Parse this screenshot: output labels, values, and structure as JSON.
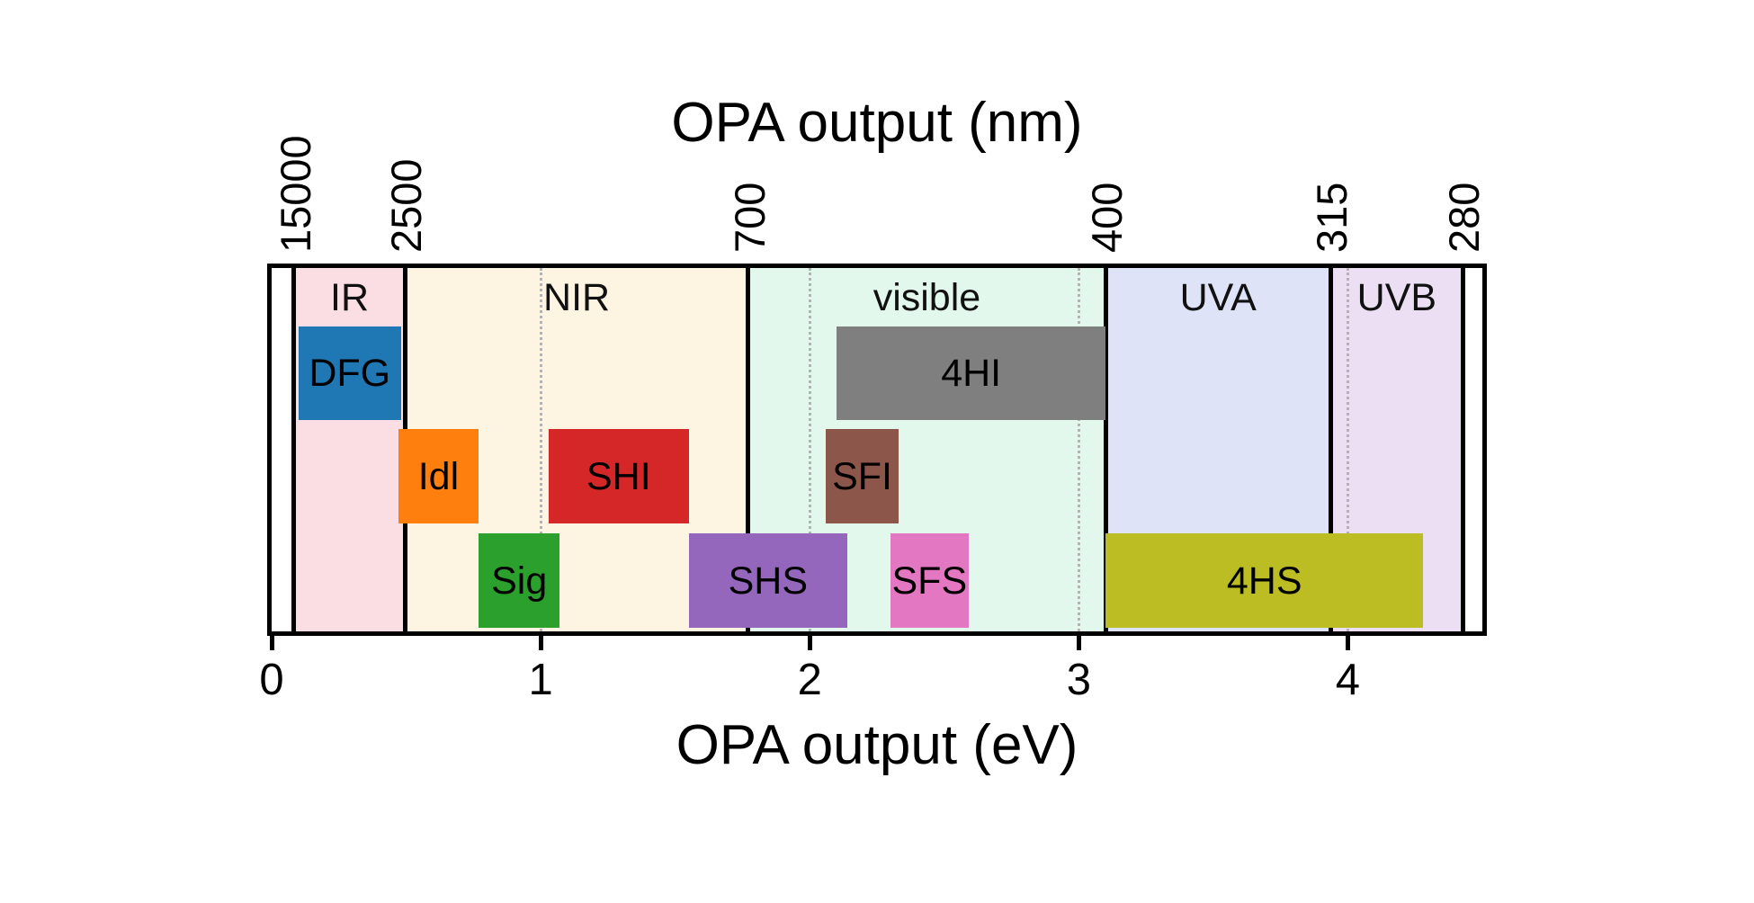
{
  "chart_data": {
    "type": "bar",
    "subtype": "horizontal-spectral-range-diagram",
    "title_top": "OPA output (nm)",
    "title_bottom": "OPA output (eV)",
    "x_axis": {
      "unit": "eV",
      "min": 0,
      "max": 4.5,
      "bottom_ticks": [
        "0",
        "1",
        "2",
        "3",
        "4"
      ],
      "bottom_tick_values": [
        0,
        1,
        2,
        3,
        4
      ],
      "gridlines_eV": [
        1,
        2,
        3,
        4
      ],
      "gridline_color": "#b3b3b3",
      "grid": true
    },
    "top_axis": {
      "unit": "nm",
      "ticks": [
        {
          "label": "15000",
          "eV": 0.0827
        },
        {
          "label": "2500",
          "eV": 0.4959
        },
        {
          "label": "700",
          "eV": 1.7712
        },
        {
          "label": "400",
          "eV": 3.0996
        },
        {
          "label": "315",
          "eV": 3.936
        },
        {
          "label": "280",
          "eV": 4.428
        }
      ]
    },
    "regions": [
      {
        "name": "IR",
        "label": "IR",
        "start_eV": 0.0827,
        "end_eV": 0.4959,
        "color": "#fadee3"
      },
      {
        "name": "NIR",
        "label": "NIR",
        "start_eV": 0.4959,
        "end_eV": 1.7712,
        "color": "#fdf5e2"
      },
      {
        "name": "visible",
        "label": "visible",
        "start_eV": 1.7712,
        "end_eV": 3.0996,
        "color": "#e2f8ec"
      },
      {
        "name": "UVA",
        "label": "UVA",
        "start_eV": 3.0996,
        "end_eV": 3.936,
        "color": "#dfe3f7"
      },
      {
        "name": "UVB",
        "label": "UVB",
        "start_eV": 3.936,
        "end_eV": 4.428,
        "color": "#ecdff3"
      }
    ],
    "rows": [
      "A",
      "B",
      "C"
    ],
    "bars": [
      {
        "label": "DFG",
        "row": "A",
        "start_eV": 0.1,
        "end_eV": 0.48,
        "color": "#1f77b4"
      },
      {
        "label": "Idl",
        "row": "B",
        "start_eV": 0.47,
        "end_eV": 0.77,
        "color": "#ff7f0e"
      },
      {
        "label": "Sig",
        "row": "C",
        "start_eV": 0.77,
        "end_eV": 1.07,
        "color": "#2ca02c"
      },
      {
        "label": "SHI",
        "row": "B",
        "start_eV": 1.03,
        "end_eV": 1.55,
        "color": "#d62728"
      },
      {
        "label": "SHS",
        "row": "C",
        "start_eV": 1.55,
        "end_eV": 2.14,
        "color": "#9467bd"
      },
      {
        "label": "SFI",
        "row": "B",
        "start_eV": 2.06,
        "end_eV": 2.33,
        "color": "#8c564b"
      },
      {
        "label": "SFS",
        "row": "C",
        "start_eV": 2.3,
        "end_eV": 2.59,
        "color": "#e377c2"
      },
      {
        "label": "4HI",
        "row": "A",
        "start_eV": 2.1,
        "end_eV": 3.1,
        "color": "#7f7f7f"
      },
      {
        "label": "4HS",
        "row": "C",
        "start_eV": 3.1,
        "end_eV": 4.28,
        "color": "#bcbd22"
      }
    ]
  }
}
